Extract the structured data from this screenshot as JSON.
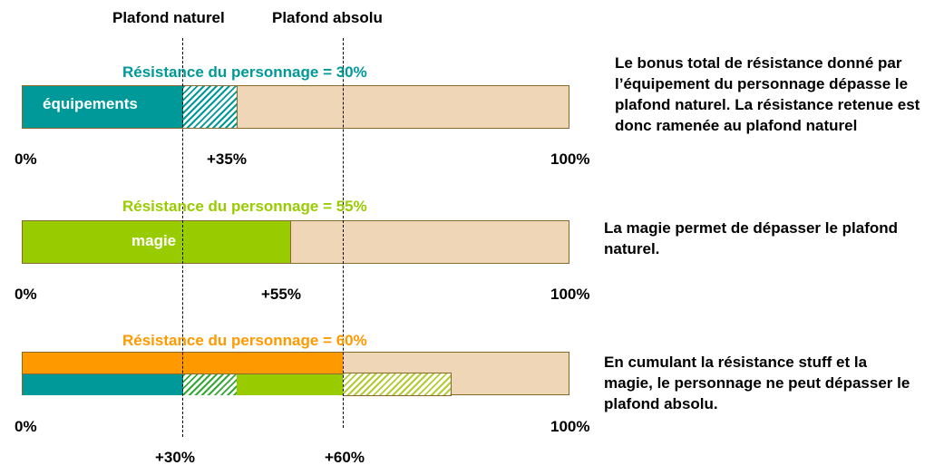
{
  "headers": {
    "natural_cap": "Plafond naturel",
    "absolute_cap": "Plafond absolu"
  },
  "colors": {
    "teal": "#009999",
    "lime": "#99cc00",
    "orange": "#ff9900",
    "bar_background": "#efd6b6"
  },
  "bar1": {
    "title": "Résistance du personnage = 30%",
    "segment_label": "équipements",
    "scale_min": "0%",
    "scale_max": "100%",
    "marker": "+35%",
    "description": "Le bonus total de résistance donné par l’équipement du personnage dépasse le plafond naturel. La résistance retenue est donc ramenée au plafond naturel"
  },
  "bar2": {
    "title": "Résistance du personnage = 55%",
    "segment_label": "magie",
    "scale_min": "0%",
    "scale_max": "100%",
    "marker": "+55%",
    "description": "La magie permet de dépasser le plafond naturel."
  },
  "bar3": {
    "title": "Résistance du personnage = 60%",
    "scale_min": "0%",
    "scale_max": "100%",
    "description": "En cumulant la résistance stuff et la magie, le personnage ne peut dépasser le plafond absolu."
  },
  "bottom_markers": {
    "natural": "+30%",
    "absolute": "+60%"
  }
}
